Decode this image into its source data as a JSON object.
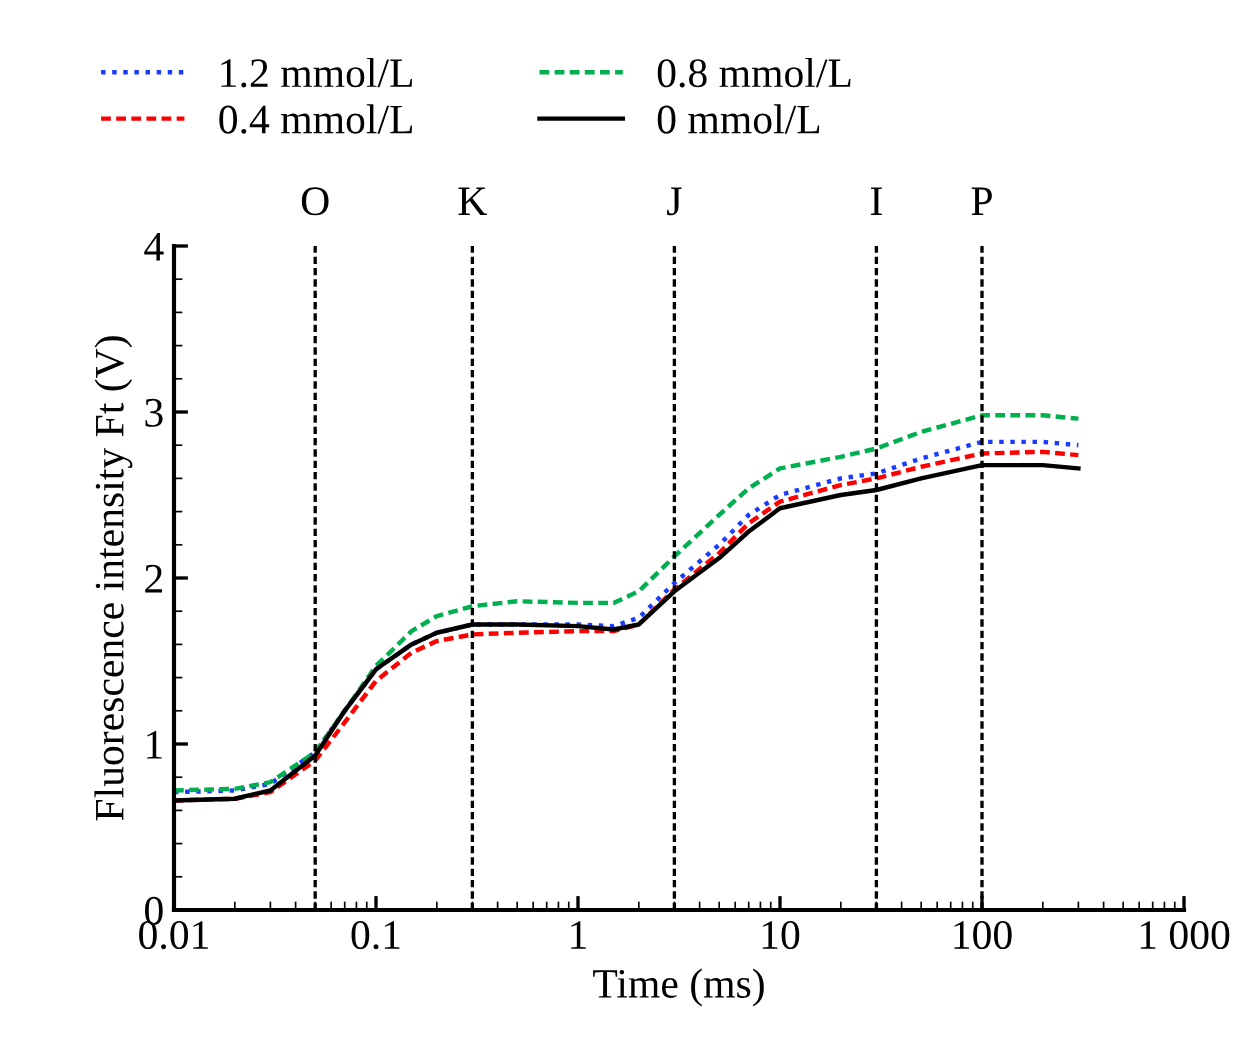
{
  "chart_data": {
    "type": "line",
    "xlabel": "Time (ms)",
    "ylabel": "Fluorescence intensity Ft (V)",
    "log": "x",
    "xlim": [
      0.01,
      1000
    ],
    "xticks": [
      0.01,
      0.1,
      1,
      10,
      100,
      {
        "value": 1000,
        "label": "1 000"
      }
    ],
    "ylim": [
      0,
      4
    ],
    "yticks": [
      0,
      1,
      2,
      3,
      4
    ],
    "grid": false,
    "legend": "top",
    "marker": "none",
    "x": [
      0.01,
      0.02,
      0.03,
      0.05,
      0.07,
      0.1,
      0.15,
      0.2,
      0.3,
      0.5,
      1,
      1.5,
      2,
      3,
      5,
      7,
      10,
      20,
      30,
      50,
      100,
      200,
      300
    ],
    "series": [
      {
        "name": "1.2 mmol/L",
        "color": "#1a3cff",
        "line_style": "dotted",
        "values": [
          0.71,
          0.72,
          0.76,
          0.95,
          1.2,
          1.45,
          1.6,
          1.67,
          1.72,
          1.72,
          1.72,
          1.71,
          1.76,
          1.97,
          2.2,
          2.38,
          2.5,
          2.6,
          2.63,
          2.72,
          2.82,
          2.82,
          2.8
        ]
      },
      {
        "name": "0.4 mmol/L",
        "color": "#ff0000",
        "line_style": "dashed",
        "values": [
          0.66,
          0.67,
          0.71,
          0.9,
          1.13,
          1.38,
          1.55,
          1.62,
          1.66,
          1.67,
          1.68,
          1.68,
          1.72,
          1.93,
          2.15,
          2.33,
          2.46,
          2.56,
          2.6,
          2.67,
          2.75,
          2.76,
          2.74
        ]
      },
      {
        "name": "0.8 mmol/L",
        "color": "#00b050",
        "line_style": "dashed",
        "values": [
          0.72,
          0.73,
          0.77,
          0.95,
          1.2,
          1.47,
          1.68,
          1.77,
          1.83,
          1.86,
          1.85,
          1.85,
          1.92,
          2.13,
          2.38,
          2.54,
          2.66,
          2.73,
          2.78,
          2.88,
          2.98,
          2.98,
          2.96
        ]
      },
      {
        "name": "0 mmol/L",
        "color": "#000000",
        "line_style": "solid",
        "values": [
          0.66,
          0.67,
          0.72,
          0.93,
          1.2,
          1.45,
          1.6,
          1.67,
          1.72,
          1.72,
          1.71,
          1.69,
          1.72,
          1.92,
          2.12,
          2.28,
          2.42,
          2.5,
          2.53,
          2.6,
          2.68,
          2.68,
          2.66
        ]
      }
    ],
    "ref_lines": [
      {
        "axis": "x",
        "value": 0.05,
        "label": "O",
        "color": "#000000",
        "line_style": "dashed"
      },
      {
        "axis": "x",
        "value": 0.3,
        "label": "K",
        "color": "#000000",
        "line_style": "dashed"
      },
      {
        "axis": "x",
        "value": 3,
        "label": "J",
        "color": "#000000",
        "line_style": "dashed"
      },
      {
        "axis": "x",
        "value": 30,
        "label": "I",
        "color": "#000000",
        "line_style": "dashed"
      },
      {
        "axis": "x",
        "value": 100,
        "label": "P",
        "color": "#000000",
        "line_style": "dashed"
      }
    ]
  }
}
